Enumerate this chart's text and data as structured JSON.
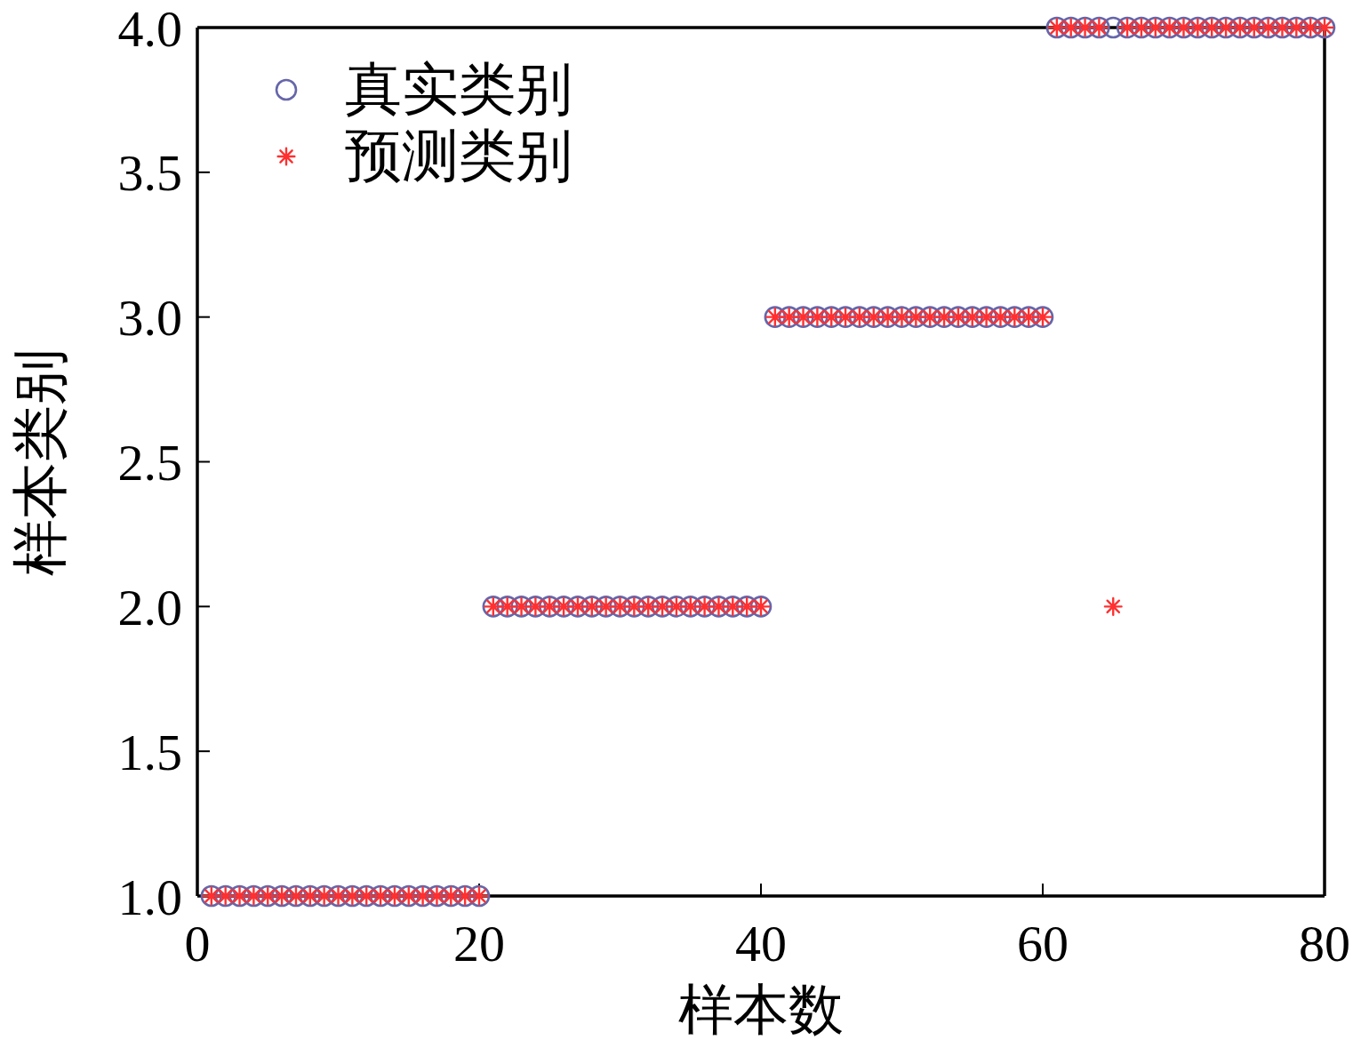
{
  "chart_data": {
    "type": "scatter",
    "xlabel": "样本数",
    "ylabel": "样本类别",
    "x": [
      1,
      2,
      3,
      4,
      5,
      6,
      7,
      8,
      9,
      10,
      11,
      12,
      13,
      14,
      15,
      16,
      17,
      18,
      19,
      20,
      21,
      22,
      23,
      24,
      25,
      26,
      27,
      28,
      29,
      30,
      31,
      32,
      33,
      34,
      35,
      36,
      37,
      38,
      39,
      40,
      41,
      42,
      43,
      44,
      45,
      46,
      47,
      48,
      49,
      50,
      51,
      52,
      53,
      54,
      55,
      56,
      57,
      58,
      59,
      60,
      61,
      62,
      63,
      64,
      65,
      66,
      67,
      68,
      69,
      70,
      71,
      72,
      73,
      74,
      75,
      76,
      77,
      78,
      79,
      80
    ],
    "xlim": [
      0,
      80
    ],
    "xticks": [
      0,
      20,
      40,
      60,
      80
    ],
    "ylim": [
      1,
      4
    ],
    "yticks": [
      {
        "value": 1,
        "label": "1.0"
      },
      {
        "value": 1.5,
        "label": "1.5"
      },
      {
        "value": 2,
        "label": "2.0"
      },
      {
        "value": 2.5,
        "label": "2.5"
      },
      {
        "value": 3,
        "label": "3.0"
      },
      {
        "value": 3.5,
        "label": "3.5"
      },
      {
        "value": 4,
        "label": "4.0"
      }
    ],
    "legend": "top left",
    "series": [
      {
        "name": "真实类别",
        "color": "#6666aa",
        "marker": "circle",
        "values": [
          1,
          1,
          1,
          1,
          1,
          1,
          1,
          1,
          1,
          1,
          1,
          1,
          1,
          1,
          1,
          1,
          1,
          1,
          1,
          1,
          2,
          2,
          2,
          2,
          2,
          2,
          2,
          2,
          2,
          2,
          2,
          2,
          2,
          2,
          2,
          2,
          2,
          2,
          2,
          2,
          3,
          3,
          3,
          3,
          3,
          3,
          3,
          3,
          3,
          3,
          3,
          3,
          3,
          3,
          3,
          3,
          3,
          3,
          3,
          3,
          4,
          4,
          4,
          4,
          4,
          4,
          4,
          4,
          4,
          4,
          4,
          4,
          4,
          4,
          4,
          4,
          4,
          4,
          4,
          4
        ]
      },
      {
        "name": "预测类别",
        "color": "#ff3030",
        "marker": "cross",
        "values": [
          1,
          1,
          1,
          1,
          1,
          1,
          1,
          1,
          1,
          1,
          1,
          1,
          1,
          1,
          1,
          1,
          1,
          1,
          1,
          1,
          2,
          2,
          2,
          2,
          2,
          2,
          2,
          2,
          2,
          2,
          2,
          2,
          2,
          2,
          2,
          2,
          2,
          2,
          2,
          2,
          3,
          3,
          3,
          3,
          3,
          3,
          3,
          3,
          3,
          3,
          3,
          3,
          3,
          3,
          3,
          3,
          3,
          3,
          3,
          3,
          4,
          4,
          4,
          4,
          2,
          4,
          4,
          4,
          4,
          4,
          4,
          4,
          4,
          4,
          4,
          4,
          4,
          4,
          4,
          4
        ]
      }
    ]
  }
}
